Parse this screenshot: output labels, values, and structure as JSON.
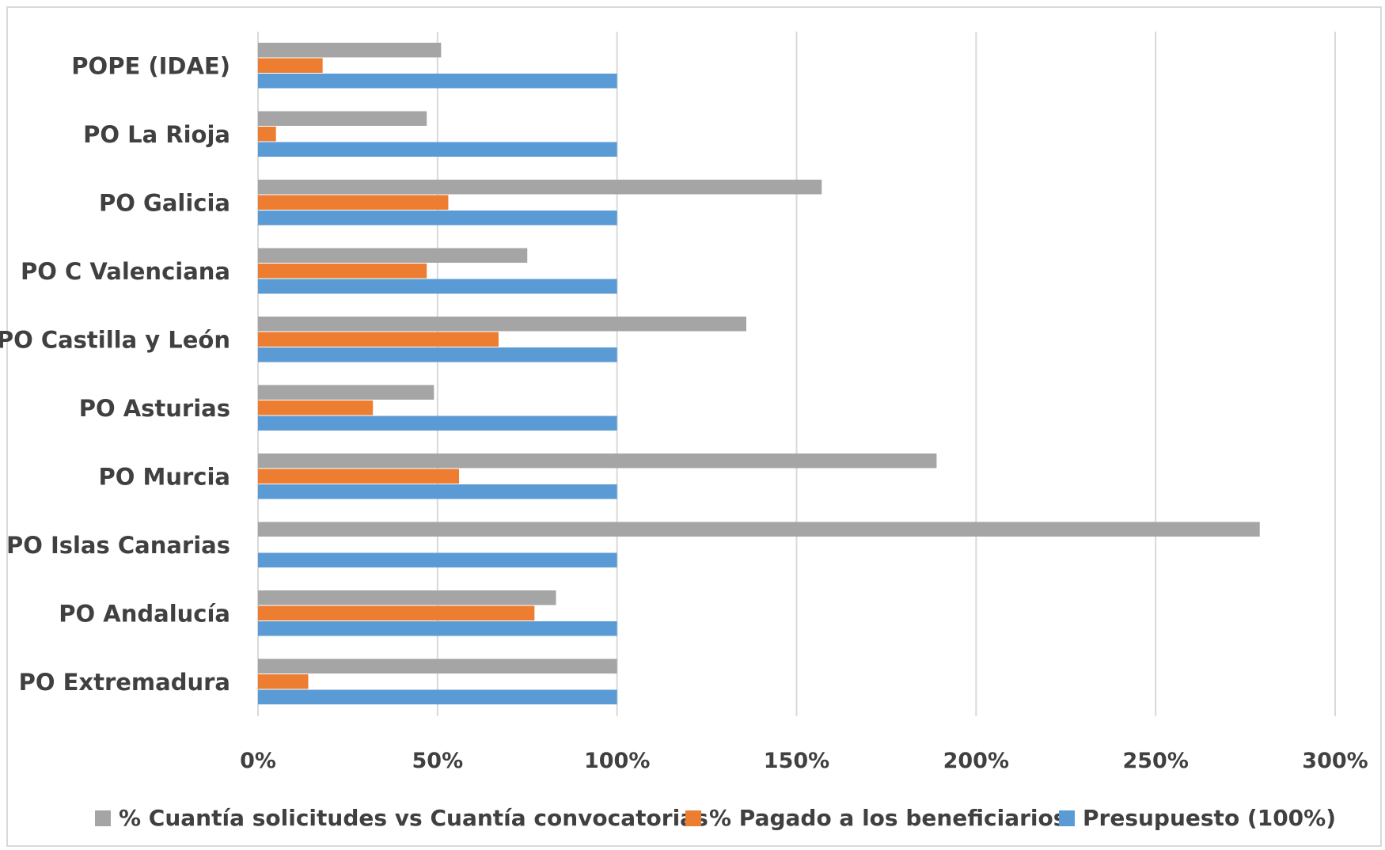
{
  "chart_data": {
    "type": "bar",
    "orientation": "horizontal",
    "categories": [
      "POPE (IDAE)",
      "PO La Rioja",
      "PO Galicia",
      "PO C Valenciana",
      "PO Castilla y León",
      "PO Asturias",
      "PO Murcia",
      "PO Islas Canarias",
      "PO Andalucía",
      "PO Extremadura"
    ],
    "series": [
      {
        "name": "% Cuantía solicitudes vs Cuantía convocatorias",
        "color": "#a5a5a5",
        "values": [
          51,
          47,
          157,
          75,
          136,
          49,
          189,
          279,
          83,
          100
        ]
      },
      {
        "name": "% Pagado a los beneficiarios",
        "color": "#ed7d31",
        "values": [
          18,
          5,
          53,
          47,
          67,
          32,
          56,
          0,
          77,
          14
        ]
      },
      {
        "name": "Presupuesto (100%)",
        "color": "#5b9bd5",
        "values": [
          100,
          100,
          100,
          100,
          100,
          100,
          100,
          100,
          100,
          100
        ]
      }
    ],
    "xlim": [
      0,
      300
    ],
    "xticks": [
      "0%",
      "50%",
      "100%",
      "150%",
      "200%",
      "250%",
      "300%"
    ],
    "grid": true,
    "legend_position": "bottom"
  }
}
